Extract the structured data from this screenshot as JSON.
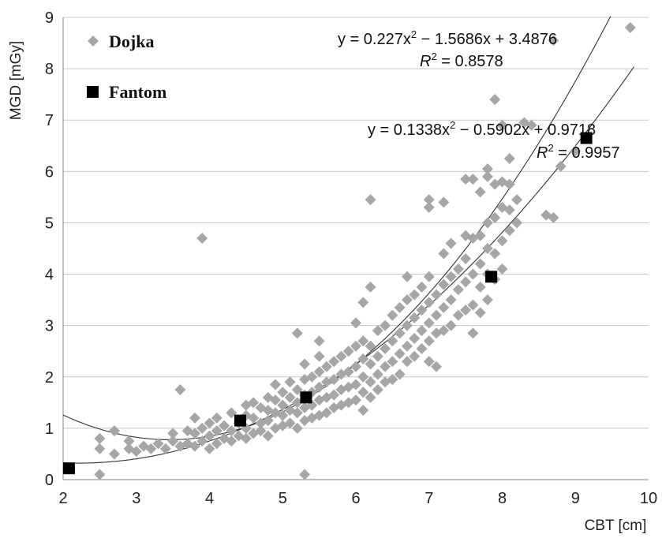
{
  "chart_data": {
    "type": "scatter",
    "xlabel": "CBT [cm]",
    "ylabel": "MGD [mGy]",
    "xlim": [
      2,
      10
    ],
    "ylim": [
      0,
      9
    ],
    "xticks": [
      "2",
      "3",
      "4",
      "5",
      "6",
      "7",
      "8",
      "9",
      "10"
    ],
    "yticks": [
      "0",
      "1",
      "2",
      "3",
      "4",
      "5",
      "6",
      "7",
      "8",
      "9"
    ],
    "grid": "horizontal",
    "legend_position": "top-left",
    "series": [
      {
        "name": "Dojka",
        "marker": "diamond",
        "color": "#a6a6a6",
        "points": [
          [
            2.5,
            0.1
          ],
          [
            2.5,
            0.6
          ],
          [
            2.5,
            0.8
          ],
          [
            2.7,
            0.5
          ],
          [
            2.7,
            0.95
          ],
          [
            2.9,
            0.6
          ],
          [
            2.9,
            0.75
          ],
          [
            3.0,
            0.55
          ],
          [
            3.1,
            0.65
          ],
          [
            3.2,
            0.6
          ],
          [
            3.3,
            0.7
          ],
          [
            3.4,
            0.6
          ],
          [
            3.5,
            0.75
          ],
          [
            3.5,
            0.9
          ],
          [
            3.6,
            0.65
          ],
          [
            3.6,
            1.75
          ],
          [
            3.7,
            0.7
          ],
          [
            3.7,
            0.95
          ],
          [
            3.8,
            0.65
          ],
          [
            3.8,
            0.9
          ],
          [
            3.8,
            1.2
          ],
          [
            3.9,
            0.75
          ],
          [
            3.9,
            1.0
          ],
          [
            3.9,
            4.7
          ],
          [
            4.0,
            0.6
          ],
          [
            4.0,
            0.85
          ],
          [
            4.0,
            1.1
          ],
          [
            4.1,
            0.7
          ],
          [
            4.1,
            0.95
          ],
          [
            4.1,
            1.2
          ],
          [
            4.2,
            0.8
          ],
          [
            4.2,
            1.05
          ],
          [
            4.3,
            0.75
          ],
          [
            4.3,
            0.95
          ],
          [
            4.3,
            1.3
          ],
          [
            4.4,
            0.85
          ],
          [
            4.4,
            1.1
          ],
          [
            4.5,
            0.8
          ],
          [
            4.5,
            1.0
          ],
          [
            4.5,
            1.25
          ],
          [
            4.5,
            1.45
          ],
          [
            4.6,
            0.9
          ],
          [
            4.6,
            1.2
          ],
          [
            4.6,
            1.5
          ],
          [
            4.7,
            0.95
          ],
          [
            4.7,
            1.1
          ],
          [
            4.7,
            1.4
          ],
          [
            4.8,
            0.85
          ],
          [
            4.8,
            1.15
          ],
          [
            4.8,
            1.35
          ],
          [
            4.8,
            1.6
          ],
          [
            4.9,
            1.0
          ],
          [
            4.9,
            1.3
          ],
          [
            4.9,
            1.55
          ],
          [
            4.9,
            1.85
          ],
          [
            5.0,
            1.05
          ],
          [
            5.0,
            1.25
          ],
          [
            5.0,
            1.45
          ],
          [
            5.0,
            1.7
          ],
          [
            5.1,
            1.1
          ],
          [
            5.1,
            1.35
          ],
          [
            5.1,
            1.6
          ],
          [
            5.1,
            1.9
          ],
          [
            5.2,
            1.0
          ],
          [
            5.2,
            1.3
          ],
          [
            5.2,
            1.5
          ],
          [
            5.2,
            1.75
          ],
          [
            5.2,
            2.85
          ],
          [
            5.3,
            1.15
          ],
          [
            5.3,
            1.4
          ],
          [
            5.3,
            1.65
          ],
          [
            5.3,
            1.95
          ],
          [
            5.3,
            2.25
          ],
          [
            5.3,
            0.1
          ],
          [
            5.4,
            1.2
          ],
          [
            5.4,
            1.45
          ],
          [
            5.4,
            1.7
          ],
          [
            5.4,
            2.0
          ],
          [
            5.5,
            1.25
          ],
          [
            5.5,
            1.55
          ],
          [
            5.5,
            1.8
          ],
          [
            5.5,
            2.1
          ],
          [
            5.5,
            2.4
          ],
          [
            5.5,
            2.7
          ],
          [
            5.6,
            1.3
          ],
          [
            5.6,
            1.6
          ],
          [
            5.6,
            1.9
          ],
          [
            5.6,
            2.2
          ],
          [
            5.7,
            1.4
          ],
          [
            5.7,
            1.65
          ],
          [
            5.7,
            1.95
          ],
          [
            5.7,
            2.3
          ],
          [
            5.8,
            1.45
          ],
          [
            5.8,
            1.75
          ],
          [
            5.8,
            2.05
          ],
          [
            5.8,
            2.4
          ],
          [
            5.9,
            1.5
          ],
          [
            5.9,
            1.8
          ],
          [
            5.9,
            2.1
          ],
          [
            5.9,
            2.5
          ],
          [
            6.0,
            1.55
          ],
          [
            6.0,
            1.85
          ],
          [
            6.0,
            2.2
          ],
          [
            6.0,
            2.6
          ],
          [
            6.0,
            3.05
          ],
          [
            6.1,
            1.35
          ],
          [
            6.1,
            1.7
          ],
          [
            6.1,
            2.0
          ],
          [
            6.1,
            2.35
          ],
          [
            6.1,
            2.7
          ],
          [
            6.1,
            3.45
          ],
          [
            6.2,
            1.6
          ],
          [
            6.2,
            1.9
          ],
          [
            6.2,
            2.25
          ],
          [
            6.2,
            2.6
          ],
          [
            6.2,
            3.75
          ],
          [
            6.2,
            5.45
          ],
          [
            6.3,
            1.75
          ],
          [
            6.3,
            2.05
          ],
          [
            6.3,
            2.4
          ],
          [
            6.3,
            2.9
          ],
          [
            6.4,
            1.9
          ],
          [
            6.4,
            2.2
          ],
          [
            6.4,
            2.55
          ],
          [
            6.4,
            3.0
          ],
          [
            6.5,
            1.95
          ],
          [
            6.5,
            2.3
          ],
          [
            6.5,
            2.7
          ],
          [
            6.5,
            3.2
          ],
          [
            6.6,
            2.05
          ],
          [
            6.6,
            2.45
          ],
          [
            6.6,
            2.85
          ],
          [
            6.6,
            3.35
          ],
          [
            6.7,
            2.3
          ],
          [
            6.7,
            2.6
          ],
          [
            6.7,
            3.0
          ],
          [
            6.7,
            3.5
          ],
          [
            6.7,
            3.95
          ],
          [
            6.8,
            2.4
          ],
          [
            6.8,
            2.75
          ],
          [
            6.8,
            3.15
          ],
          [
            6.8,
            3.6
          ],
          [
            6.9,
            2.55
          ],
          [
            6.9,
            2.9
          ],
          [
            6.9,
            3.3
          ],
          [
            6.9,
            3.75
          ],
          [
            7.0,
            2.3
          ],
          [
            7.0,
            2.7
          ],
          [
            7.0,
            3.05
          ],
          [
            7.0,
            3.45
          ],
          [
            7.0,
            3.95
          ],
          [
            7.0,
            5.3
          ],
          [
            7.0,
            5.45
          ],
          [
            7.1,
            2.2
          ],
          [
            7.1,
            2.85
          ],
          [
            7.1,
            3.2
          ],
          [
            7.1,
            3.6
          ],
          [
            7.2,
            2.9
          ],
          [
            7.2,
            3.35
          ],
          [
            7.2,
            3.8
          ],
          [
            7.2,
            4.4
          ],
          [
            7.2,
            5.4
          ],
          [
            7.3,
            3.0
          ],
          [
            7.3,
            3.5
          ],
          [
            7.3,
            3.95
          ],
          [
            7.3,
            4.6
          ],
          [
            7.4,
            3.2
          ],
          [
            7.4,
            3.7
          ],
          [
            7.4,
            4.1
          ],
          [
            7.5,
            3.3
          ],
          [
            7.5,
            3.85
          ],
          [
            7.5,
            4.3
          ],
          [
            7.5,
            4.75
          ],
          [
            7.5,
            5.85
          ],
          [
            7.6,
            2.85
          ],
          [
            7.6,
            3.4
          ],
          [
            7.6,
            4.0
          ],
          [
            7.6,
            4.7
          ],
          [
            7.6,
            5.85
          ],
          [
            7.7,
            3.25
          ],
          [
            7.7,
            3.75
          ],
          [
            7.7,
            4.2
          ],
          [
            7.7,
            4.75
          ],
          [
            7.7,
            5.6
          ],
          [
            7.8,
            3.5
          ],
          [
            7.8,
            4.0
          ],
          [
            7.8,
            4.5
          ],
          [
            7.8,
            5.0
          ],
          [
            7.8,
            5.9
          ],
          [
            7.8,
            6.05
          ],
          [
            7.9,
            3.9
          ],
          [
            7.9,
            4.4
          ],
          [
            7.9,
            5.1
          ],
          [
            7.9,
            5.75
          ],
          [
            7.9,
            7.4
          ],
          [
            8.0,
            4.1
          ],
          [
            8.0,
            4.65
          ],
          [
            8.0,
            5.3
          ],
          [
            8.0,
            5.8
          ],
          [
            8.0,
            6.9
          ],
          [
            8.1,
            4.85
          ],
          [
            8.1,
            5.25
          ],
          [
            8.1,
            5.75
          ],
          [
            8.1,
            6.25
          ],
          [
            8.2,
            5.0
          ],
          [
            8.2,
            5.45
          ],
          [
            8.3,
            6.95
          ],
          [
            8.4,
            6.9
          ],
          [
            8.6,
            5.15
          ],
          [
            8.7,
            5.1
          ],
          [
            8.7,
            8.55
          ],
          [
            8.8,
            6.1
          ],
          [
            9.0,
            6.4
          ],
          [
            9.75,
            8.8
          ]
        ]
      },
      {
        "name": "Fantom",
        "marker": "square",
        "color": "#000000",
        "points": [
          [
            2.08,
            0.22
          ],
          [
            4.42,
            1.15
          ],
          [
            5.32,
            1.6
          ],
          [
            7.85,
            3.95
          ],
          [
            9.15,
            6.65
          ]
        ]
      }
    ],
    "trendlines": [
      {
        "series": "Dojka",
        "coefficients": [
          0.227,
          -1.5686,
          3.4876
        ],
        "equation_text": "y = 0.227x² − 1.5686x + 3.4876",
        "eq_lhs": "y = 0.227x",
        "eq_rhs": " − 1.5686x + 3.4876",
        "r2_label": "R",
        "r2_value": " = 0.8578",
        "r2": 0.8578
      },
      {
        "series": "Fantom",
        "coefficients": [
          0.1338,
          -0.5902,
          0.9718
        ],
        "equation_text": "y = 0.1338x² − 0.5902x + 0.9718",
        "eq_lhs": "y = 0.1338x",
        "eq_rhs": " − 0.5902x + 0.9718",
        "r2_label": "R",
        "r2_value": " = 0.9957",
        "r2": 0.9957
      }
    ]
  }
}
